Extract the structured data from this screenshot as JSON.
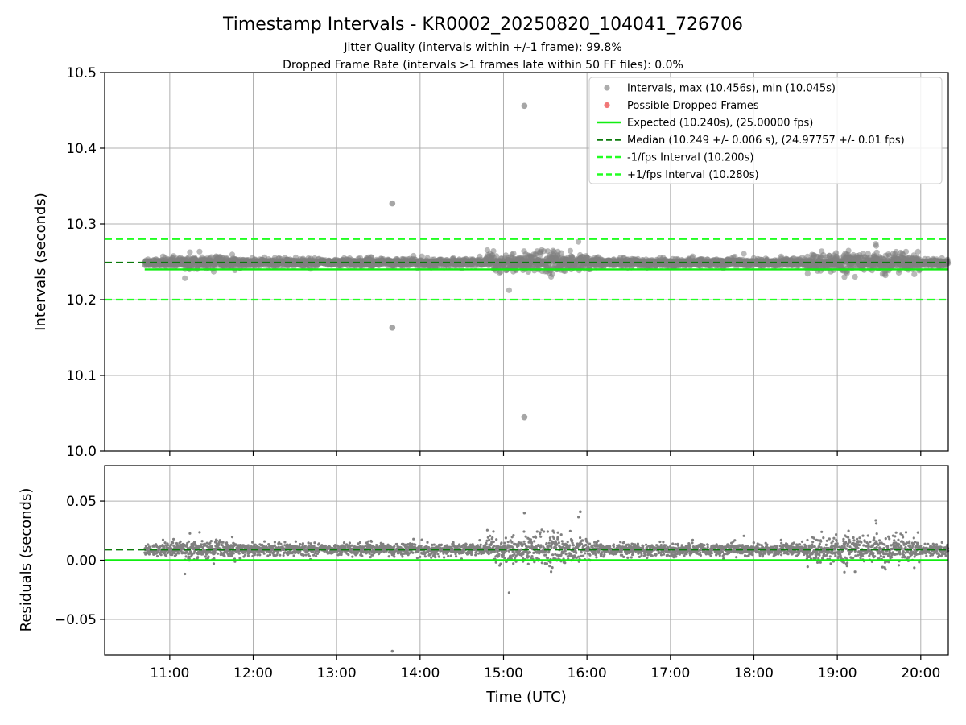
{
  "figure": {
    "title": "Timestamp Intervals - KR0002_20250820_104041_726706",
    "subtitle_1": "Jitter Quality (intervals within +/-1 frame): 99.8%",
    "subtitle_2": "Dropped Frame Rate (intervals >1 frames late within 50 FF files): 0.0%"
  },
  "colors": {
    "points": "#808080",
    "dropped": "#ff0000",
    "expected": "#11ee11",
    "median": "#0b7a0b",
    "interval_bounds": "#22ff22",
    "grid": "#b0b0b0"
  },
  "chart_data": [
    {
      "type": "scatter",
      "panel": "top",
      "xlabel": "",
      "ylabel": "Intervals (seconds)",
      "xlim_hours": [
        10.22,
        20.33
      ],
      "ylim": [
        10.0,
        10.5
      ],
      "yticks": [
        10.0,
        10.1,
        10.2,
        10.3,
        10.4,
        10.5
      ],
      "ytick_labels": [
        "10.0",
        "10.1",
        "10.2",
        "10.3",
        "10.4",
        "10.5"
      ],
      "grid": true,
      "legend_position": "top-right",
      "legend": [
        {
          "label": "Intervals, max (10.456s), min (10.045s)",
          "kind": "marker",
          "color": "#999999"
        },
        {
          "label": "Possible Dropped Frames",
          "kind": "marker",
          "color": "#ee5555"
        },
        {
          "label": "Expected (10.240s), (25.00000 fps)",
          "kind": "solid",
          "color": "#11ee11"
        },
        {
          "label": "Median (10.249 +/- 0.006 s), (24.97757 +/- 0.01 fps)",
          "kind": "dashed",
          "color": "#0b7a0b"
        },
        {
          "label": "-1/fps Interval (10.200s)",
          "kind": "dashed",
          "color": "#22ff22"
        },
        {
          "label": "+1/fps Interval (10.280s)",
          "kind": "dashed",
          "color": "#22ff22"
        }
      ],
      "reference_lines": {
        "expected": 10.24,
        "median": 10.249,
        "lower_interval": 10.2,
        "upper_interval": 10.28
      },
      "data_range_hours": [
        10.7,
        20.33
      ],
      "outliers": [
        {
          "t": "15:15",
          "hour": 15.25,
          "y": 10.456
        },
        {
          "t": "13:40",
          "hour": 13.667,
          "y": 10.327
        },
        {
          "t": "13:40",
          "hour": 13.667,
          "y": 10.163
        },
        {
          "t": "15:15",
          "hour": 15.25,
          "y": 10.045
        }
      ]
    },
    {
      "type": "scatter",
      "panel": "bottom",
      "xlabel": "Time (UTC)",
      "ylabel": "Residuals (seconds)",
      "xlim_hours": [
        10.22,
        20.33
      ],
      "ylim": [
        -0.08,
        0.08
      ],
      "yticks": [
        -0.05,
        0.0,
        0.05
      ],
      "ytick_labels": [
        "−0.05",
        "0.00",
        "0.05"
      ],
      "xticks_hours": [
        11,
        12,
        13,
        14,
        15,
        16,
        17,
        18,
        19,
        20
      ],
      "xtick_labels": [
        "11:00",
        "12:00",
        "13:00",
        "14:00",
        "15:00",
        "16:00",
        "17:00",
        "18:00",
        "19:00",
        "20:00"
      ],
      "grid": true,
      "reference_lines": {
        "zero": 0.0,
        "median_residual": 0.009
      },
      "outliers": [
        {
          "t": "13:40",
          "hour": 13.667,
          "y": -0.077
        },
        {
          "t": "15:55",
          "hour": 15.92,
          "y": 0.041
        },
        {
          "t": "15:15",
          "hour": 15.25,
          "y": 0.04
        }
      ]
    }
  ]
}
